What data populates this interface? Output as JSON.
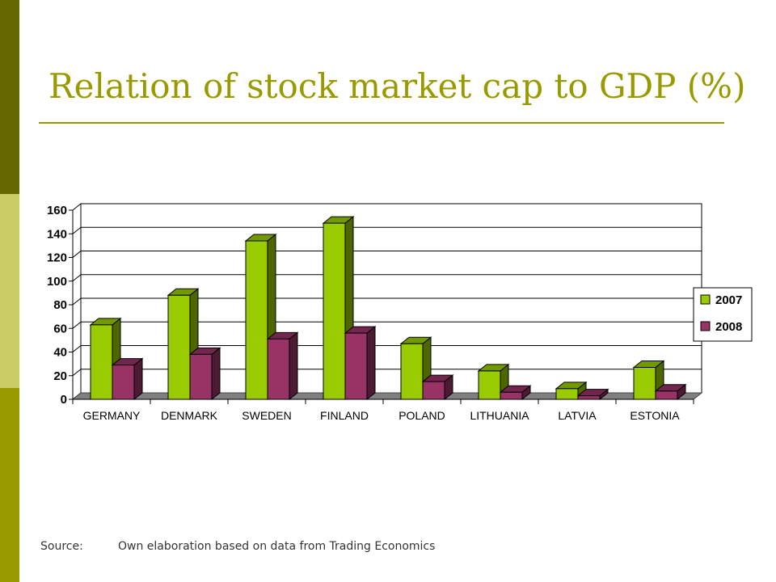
{
  "slide": {
    "title": "Relation of stock market cap to GDP (%)",
    "source_label": "Source:",
    "source_text": "Own elaboration based on data from Trading Economics"
  },
  "colors": {
    "accent": "#999900",
    "accent_dark": "#666600",
    "accent_light": "#cccc66",
    "series_2007": "#99cc00",
    "series_2008": "#993366"
  },
  "chart_data": {
    "type": "bar",
    "categories": [
      "GERMANY",
      "DENMARK",
      "SWEDEN",
      "FINLAND",
      "POLAND",
      "LITHUANIA",
      "LATVIA",
      "ESTONIA"
    ],
    "series": [
      {
        "name": "2007",
        "values": [
          63,
          88,
          134,
          149,
          47,
          24,
          9,
          27
        ]
      },
      {
        "name": "2008",
        "values": [
          29,
          38,
          51,
          56,
          15,
          6,
          3,
          7
        ]
      }
    ],
    "y_ticks": [
      "0",
      "20",
      "40",
      "60",
      "80",
      "100",
      "120",
      "140",
      "160"
    ],
    "ylim": [
      0,
      160
    ],
    "grid": true,
    "legend": "right",
    "style": "3d-column"
  }
}
